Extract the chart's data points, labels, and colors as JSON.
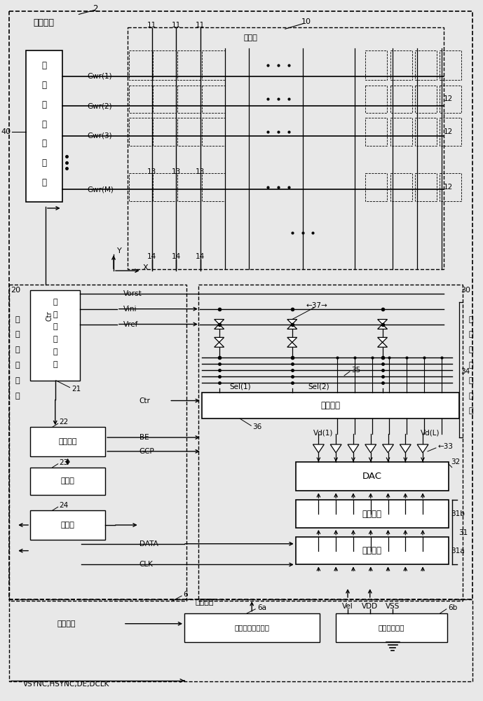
{
  "bg": "#e8e8e8",
  "lc": "#000000",
  "wf": "#ffffff",
  "labels": {
    "显示面板": "显示面板",
    "显示部": "显示部",
    "栅极线驱动电路": "栅\n极\n线\n驱\n动\n电\n路",
    "显示控制电路": "显\n示\n控\n制\n电\n路",
    "电压生成电路_inner": "电\n压\n生\n成\n电\n路",
    "控制电路": "控制电路",
    "储存部": "储存部",
    "检查表": "检查表",
    "选择电路": "选择电路",
    "DAC": "DAC",
    "锁存电路": "锁存电路",
    "数据线驱动电路": "数\n据\n线\n驱\n动\n电\n路",
    "外部装置": "外部装置",
    "图像数据用控制器": "图像数据用控制器",
    "电压生成电路_ext": "电压生成电路",
    "图像数据": "图像数据",
    "VSYNC": "VSYNC,HSYNC,DE,DCLK"
  }
}
